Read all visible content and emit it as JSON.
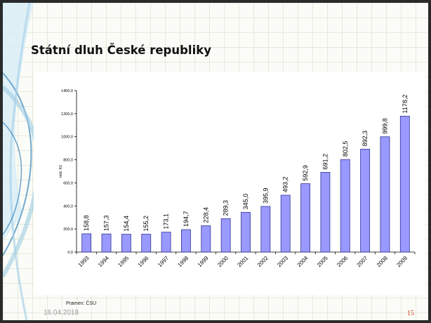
{
  "slide": {
    "title": "Státní dluh České republiky",
    "source": "Pramen: ČSÚ",
    "date": "16.04.2018",
    "page_number": "15"
  },
  "colors": {
    "bar_fill": "#9999ff",
    "bar_stroke": "#333399",
    "title": "#111111",
    "page_number": "#d14020",
    "decoration": "#5aa0c8"
  },
  "chart_data": {
    "type": "bar",
    "title": "",
    "xlabel": "",
    "ylabel": "mld. Kč",
    "ylim": [
      0,
      1400
    ],
    "yticks": [
      "0,0",
      "200,0",
      "400,0",
      "600,0",
      "800,0",
      "1000,0",
      "1200,0",
      "1400,0"
    ],
    "grid": false,
    "categories": [
      "1993",
      "1994",
      "1995",
      "1996",
      "1997",
      "1998",
      "1999",
      "2000",
      "2001",
      "2002",
      "2003",
      "2004",
      "2005",
      "2006",
      "2007",
      "2008",
      "2009"
    ],
    "values": [
      158.8,
      157.3,
      154.4,
      155.2,
      173.1,
      194.7,
      228.4,
      289.3,
      345.0,
      395.9,
      493.2,
      592.9,
      691.2,
      802.5,
      892.3,
      999.8,
      1178.2
    ],
    "data_labels": [
      "158,8",
      "157,3",
      "154,4",
      "155,2",
      "173,1",
      "194,7",
      "228,4",
      "289,3",
      "345,0",
      "395,9",
      "493,2",
      "592,9",
      "691,2",
      "802,5",
      "892,3",
      "999,8",
      "1178,2"
    ]
  }
}
